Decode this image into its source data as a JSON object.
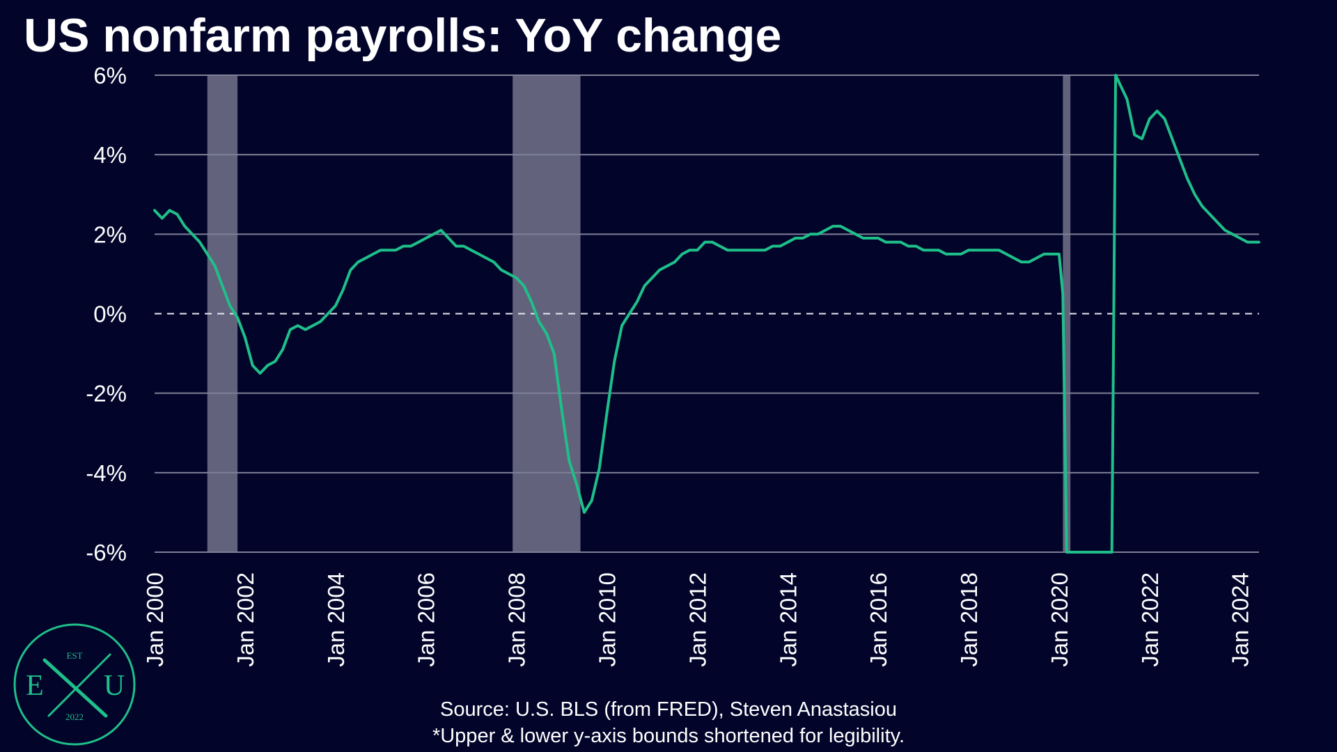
{
  "colors": {
    "background": "#02042a",
    "line": "#1fbf8a",
    "grid": "#7e8096",
    "zero_line": "#e8e8ee",
    "recession": "#62627c",
    "text": "#ffffff",
    "logo": "#1fbf8a"
  },
  "footer": {
    "source": "Source: U.S. BLS (from FRED), Steven Anastasiou",
    "note": "*Upper & lower y-axis bounds shortened for legibility."
  },
  "logo": {
    "top": "EST",
    "left": "E",
    "right": "U",
    "bottom": "2022"
  },
  "chart_data": {
    "type": "line",
    "title": "US nonfarm payrolls: YoY change",
    "xlabel": "",
    "ylabel": "",
    "ylim": [
      -6,
      6
    ],
    "xlim": [
      2000.0,
      2024.42
    ],
    "y_ticks": [
      6,
      4,
      2,
      0,
      -2,
      -4,
      -6
    ],
    "y_tick_labels": [
      "6%",
      "4%",
      "2%",
      "0%",
      "-2%",
      "-4%",
      "-6%"
    ],
    "x_ticks": [
      2000,
      2002,
      2004,
      2006,
      2008,
      2010,
      2012,
      2014,
      2016,
      2018,
      2020,
      2022,
      2024
    ],
    "x_tick_labels": [
      "Jan 2000",
      "Jan 2002",
      "Jan 2004",
      "Jan 2006",
      "Jan 2008",
      "Jan 2010",
      "Jan 2012",
      "Jan 2014",
      "Jan 2016",
      "Jan 2018",
      "Jan 2020",
      "Jan 2022",
      "Jan 2024"
    ],
    "grid": true,
    "zero_line": "dashed",
    "recessions": [
      {
        "start": "Mar 2001",
        "end": "Nov 2001"
      },
      {
        "start": "Dec 2007",
        "end": "Jun 2009"
      },
      {
        "start": "Feb 2020",
        "end": "Apr 2020"
      }
    ],
    "series": [
      {
        "name": "",
        "x": [
          "Jan 2000",
          "Mar 2000",
          "May 2000",
          "Jul 2000",
          "Sep 2000",
          "Nov 2000",
          "Jan 2001",
          "Mar 2001",
          "May 2001",
          "Jul 2001",
          "Sep 2001",
          "Nov 2001",
          "Jan 2002",
          "Mar 2002",
          "May 2002",
          "Jul 2002",
          "Sep 2002",
          "Nov 2002",
          "Jan 2003",
          "Mar 2003",
          "May 2003",
          "Jul 2003",
          "Sep 2003",
          "Nov 2003",
          "Jan 2004",
          "Mar 2004",
          "May 2004",
          "Jul 2004",
          "Sep 2004",
          "Nov 2004",
          "Jan 2005",
          "Mar 2005",
          "May 2005",
          "Jul 2005",
          "Sep 2005",
          "Nov 2005",
          "Jan 2006",
          "Mar 2006",
          "May 2006",
          "Jul 2006",
          "Sep 2006",
          "Nov 2006",
          "Jan 2007",
          "Mar 2007",
          "May 2007",
          "Jul 2007",
          "Sep 2007",
          "Nov 2007",
          "Jan 2008",
          "Mar 2008",
          "May 2008",
          "Jul 2008",
          "Sep 2008",
          "Nov 2008",
          "Jan 2009",
          "Mar 2009",
          "May 2009",
          "Jul 2009",
          "Sep 2009",
          "Nov 2009",
          "Jan 2010",
          "Mar 2010",
          "May 2010",
          "Jul 2010",
          "Sep 2010",
          "Nov 2010",
          "Jan 2011",
          "Mar 2011",
          "May 2011",
          "Jul 2011",
          "Sep 2011",
          "Nov 2011",
          "Jan 2012",
          "Mar 2012",
          "May 2012",
          "Jul 2012",
          "Sep 2012",
          "Nov 2012",
          "Jan 2013",
          "Mar 2013",
          "May 2013",
          "Jul 2013",
          "Sep 2013",
          "Nov 2013",
          "Jan 2014",
          "Mar 2014",
          "May 2014",
          "Jul 2014",
          "Sep 2014",
          "Nov 2014",
          "Jan 2015",
          "Mar 2015",
          "May 2015",
          "Jul 2015",
          "Sep 2015",
          "Nov 2015",
          "Jan 2016",
          "Mar 2016",
          "May 2016",
          "Jul 2016",
          "Sep 2016",
          "Nov 2016",
          "Jan 2017",
          "Mar 2017",
          "May 2017",
          "Jul 2017",
          "Sep 2017",
          "Nov 2017",
          "Jan 2018",
          "Mar 2018",
          "May 2018",
          "Jul 2018",
          "Sep 2018",
          "Nov 2018",
          "Jan 2019",
          "Mar 2019",
          "May 2019",
          "Jul 2019",
          "Sep 2019",
          "Nov 2019",
          "Jan 2020",
          "Feb 2020",
          "Mar 2020",
          "Apr 2020",
          "Mar 2021",
          "Apr 2021",
          "May 2021",
          "Jul 2021",
          "Sep 2021",
          "Nov 2021",
          "Jan 2022",
          "Mar 2022",
          "May 2022",
          "Jul 2022",
          "Sep 2022",
          "Nov 2022",
          "Jan 2023",
          "Mar 2023",
          "May 2023",
          "Jul 2023",
          "Sep 2023",
          "Nov 2023",
          "Jan 2024",
          "Mar 2024",
          "Jun 2024"
        ],
        "values": [
          2.6,
          2.4,
          2.6,
          2.5,
          2.2,
          2.0,
          1.8,
          1.5,
          1.2,
          0.7,
          0.2,
          -0.1,
          -0.6,
          -1.3,
          -1.5,
          -1.3,
          -1.2,
          -0.9,
          -0.4,
          -0.3,
          -0.4,
          -0.3,
          -0.2,
          0.0,
          0.2,
          0.6,
          1.1,
          1.3,
          1.4,
          1.5,
          1.6,
          1.6,
          1.6,
          1.7,
          1.7,
          1.8,
          1.9,
          2.0,
          2.1,
          1.9,
          1.7,
          1.7,
          1.6,
          1.5,
          1.4,
          1.3,
          1.1,
          1.0,
          0.9,
          0.7,
          0.3,
          -0.2,
          -0.5,
          -1.0,
          -2.4,
          -3.7,
          -4.3,
          -5.0,
          -4.7,
          -3.9,
          -2.5,
          -1.2,
          -0.3,
          0.0,
          0.3,
          0.7,
          0.9,
          1.1,
          1.2,
          1.3,
          1.5,
          1.6,
          1.6,
          1.8,
          1.8,
          1.7,
          1.6,
          1.6,
          1.6,
          1.6,
          1.6,
          1.6,
          1.7,
          1.7,
          1.8,
          1.9,
          1.9,
          2.0,
          2.0,
          2.1,
          2.2,
          2.2,
          2.1,
          2.0,
          1.9,
          1.9,
          1.9,
          1.8,
          1.8,
          1.8,
          1.7,
          1.7,
          1.6,
          1.6,
          1.6,
          1.5,
          1.5,
          1.5,
          1.6,
          1.6,
          1.6,
          1.6,
          1.6,
          1.5,
          1.4,
          1.3,
          1.3,
          1.4,
          1.5,
          1.5,
          1.5,
          0.5,
          -6.0,
          -6.0,
          -6.0,
          6.0,
          5.8,
          5.4,
          4.5,
          4.4,
          4.9,
          5.1,
          4.9,
          4.4,
          3.9,
          3.4,
          3.0,
          2.7,
          2.5,
          2.3,
          2.1,
          2.0,
          1.9,
          1.8,
          1.8
        ]
      }
    ]
  }
}
